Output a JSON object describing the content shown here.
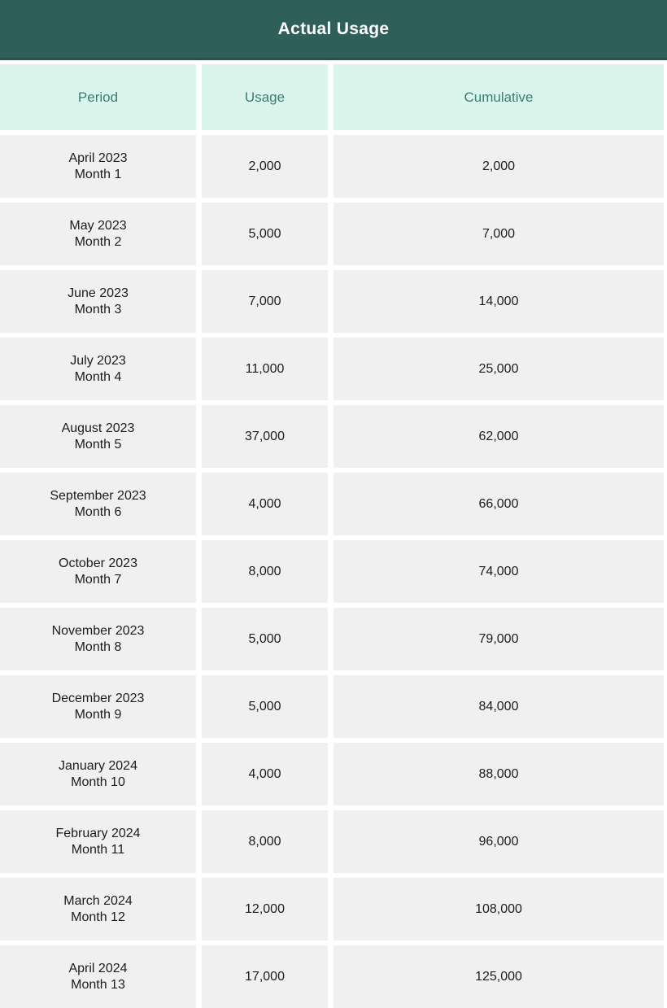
{
  "title": "Actual Usage",
  "colors": {
    "banner_bg": "#2e5f59",
    "banner_border": "#27534e",
    "title_text": "#ffffff",
    "header_bg": "#d9f5ec",
    "header_text": "#3e7b70",
    "row_bg": "#f0f0f0",
    "row_text": "#1c1c1c",
    "gap": "#ffffff"
  },
  "chart_data": {
    "type": "table",
    "title": "Actual Usage",
    "columns": [
      "Period",
      "Usage",
      "Cumulative"
    ],
    "rows": [
      {
        "period": "April 2023",
        "month": "Month 1",
        "usage": "2,000",
        "cumulative": "2,000"
      },
      {
        "period": "May 2023",
        "month": "Month 2",
        "usage": "5,000",
        "cumulative": "7,000"
      },
      {
        "period": "June 2023",
        "month": "Month 3",
        "usage": "7,000",
        "cumulative": "14,000"
      },
      {
        "period": "July 2023",
        "month": "Month 4",
        "usage": "11,000",
        "cumulative": "25,000"
      },
      {
        "period": "August 2023",
        "month": "Month 5",
        "usage": "37,000",
        "cumulative": "62,000"
      },
      {
        "period": "September 2023",
        "month": "Month 6",
        "usage": "4,000",
        "cumulative": "66,000"
      },
      {
        "period": "October 2023",
        "month": "Month 7",
        "usage": "8,000",
        "cumulative": "74,000"
      },
      {
        "period": "November 2023",
        "month": "Month 8",
        "usage": "5,000",
        "cumulative": "79,000"
      },
      {
        "period": "December 2023",
        "month": "Month 9",
        "usage": "5,000",
        "cumulative": "84,000"
      },
      {
        "period": "January 2024",
        "month": "Month 10",
        "usage": "4,000",
        "cumulative": "88,000"
      },
      {
        "period": "February 2024",
        "month": "Month 11",
        "usage": "8,000",
        "cumulative": "96,000"
      },
      {
        "period": "March 2024",
        "month": "Month 12",
        "usage": "12,000",
        "cumulative": "108,000"
      },
      {
        "period": "April 2024",
        "month": "Month 13",
        "usage": "17,000",
        "cumulative": "125,000"
      }
    ]
  }
}
